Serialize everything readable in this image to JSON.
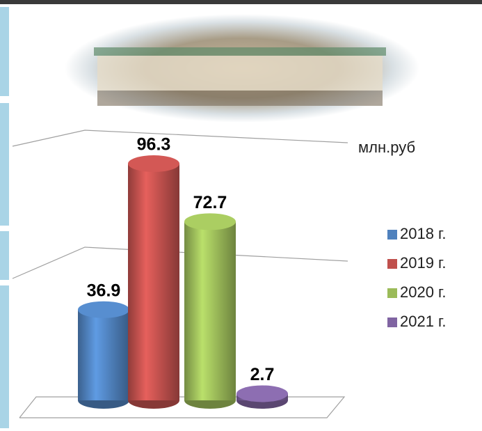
{
  "chart_data": {
    "type": "cylinder-bar",
    "unit_label": "млн.руб",
    "ylim": [
      0,
      100
    ],
    "series": [
      {
        "name": "2018 г.",
        "color": "#4f81bd",
        "values": [
          36.9
        ]
      },
      {
        "name": "2019 г.",
        "color": "#c0504d",
        "values": [
          96.3
        ]
      },
      {
        "name": "2020 г.",
        "color": "#9bbb59",
        "values": [
          72.7
        ]
      },
      {
        "name": "2021 г.",
        "color": "#8064a2",
        "values": [
          2.7
        ]
      }
    ]
  }
}
